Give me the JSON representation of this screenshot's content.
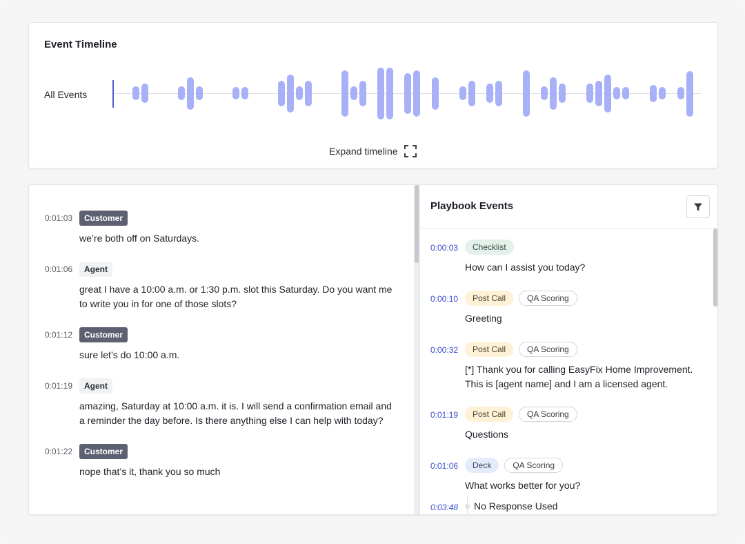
{
  "timeline": {
    "title": "Event Timeline",
    "lane_label": "All Events",
    "expand_label": "Expand timeline",
    "bar_color": "#a8b0f7",
    "cursor_color": "#4a5ed8"
  },
  "transcript": {
    "messages": [
      {
        "time": "0:01:03",
        "speaker": "Customer",
        "text": "we’re both off on Saturdays."
      },
      {
        "time": "0:01:06",
        "speaker": "Agent",
        "text": "great I have a 10:00 a.m. or 1:30 p.m. slot this Saturday. Do you want me to write you in for one of those slots?"
      },
      {
        "time": "0:01:12",
        "speaker": "Customer",
        "text": "sure let’s do 10:00 a.m."
      },
      {
        "time": "0:01:19",
        "speaker": "Agent",
        "text": "amazing, Saturday at 10:00 a.m. it is. I will send a confirmation email and a reminder the day before. Is there anything else I can help with today?"
      },
      {
        "time": "0:01:22",
        "speaker": "Customer",
        "text": "nope that’s it, thank you so much"
      }
    ]
  },
  "playbook": {
    "title": "Playbook Events",
    "filter_icon": "filter-icon",
    "events": [
      {
        "time": "0:00:03",
        "chips": [
          "Checklist"
        ],
        "text": "How can I assist you today?"
      },
      {
        "time": "0:00:10",
        "chips": [
          "Post Call",
          "QA Scoring"
        ],
        "text": "Greeting"
      },
      {
        "time": "0:00:32",
        "chips": [
          "Post Call",
          "QA Scoring"
        ],
        "text": "[*] Thank you for calling EasyFix Home Improvement. This is [agent name] and I am a licensed agent."
      },
      {
        "time": "0:01:19",
        "chips": [
          "Post Call",
          "QA Scoring"
        ],
        "text": "Questions"
      },
      {
        "time": "0:01:06",
        "chips": [
          "Deck",
          "QA Scoring"
        ],
        "text": "What works better for you?"
      }
    ],
    "sub_event": {
      "time": "0:03:48",
      "text": "No Response Used"
    }
  }
}
